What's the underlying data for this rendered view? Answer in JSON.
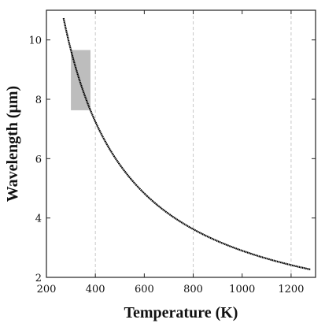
{
  "chart_data": {
    "type": "line",
    "title": "",
    "xlabel": "Temperature (K)",
    "ylabel": "Wavelength (μm)",
    "xlim": [
      200,
      1300
    ],
    "ylim": [
      2,
      11
    ],
    "xticks": [
      200,
      400,
      600,
      800,
      1000,
      1200
    ],
    "yticks": [
      2,
      4,
      6,
      8,
      10
    ],
    "xtick_labels": [
      "200",
      "400",
      "600",
      "800",
      "1000",
      "1200"
    ],
    "ytick_labels": [
      "2",
      "4",
      "6",
      "8",
      "10"
    ],
    "vertical_reference_lines_x": [
      400,
      800,
      1200
    ],
    "curve": {
      "relation": "wavelength = 2898 / temperature",
      "x_start": 270,
      "x_end": 1280,
      "style": "dotted"
    },
    "highlight_region": {
      "x": [
        300,
        380
      ],
      "y": [
        7.63,
        9.66
      ],
      "color": "#bdbdbd"
    },
    "colors": {
      "curve": "#000000",
      "highlight": "#bdbdbd",
      "reference_lines": "#c8c8c8"
    },
    "grid": false,
    "legend": "none"
  }
}
